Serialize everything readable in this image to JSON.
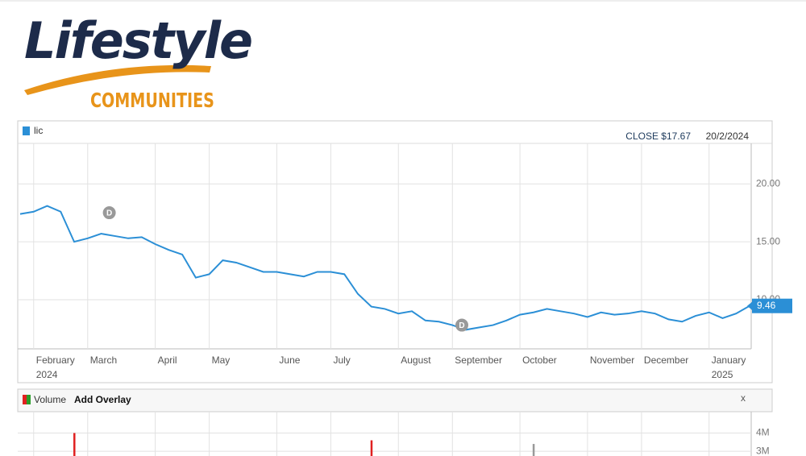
{
  "header": {
    "logo_title": "Lifestyle",
    "logo_subtitle": "COMMUNITIES"
  },
  "chart_data": {
    "type": "line",
    "legend_name": "lic",
    "close_label": "CLOSE $17.67",
    "date_label": "20/2/2024",
    "annotations": [
      "D",
      "D"
    ],
    "categories": [
      null,
      "February 2024",
      null,
      null,
      null,
      "March",
      null,
      null,
      null,
      null,
      "April",
      null,
      null,
      null,
      "May",
      null,
      null,
      null,
      null,
      "June",
      null,
      null,
      null,
      "July",
      null,
      null,
      null,
      null,
      "August",
      null,
      null,
      null,
      "September",
      null,
      null,
      null,
      null,
      "October",
      null,
      null,
      null,
      null,
      "November",
      null,
      null,
      null,
      "December",
      null,
      null,
      null,
      null,
      "January 2025",
      null,
      null,
      null
    ],
    "series": [
      {
        "name": "lic",
        "color": "#2b8fd6",
        "values": [
          17.4,
          17.6,
          18.1,
          17.6,
          15.0,
          15.3,
          15.7,
          15.5,
          15.3,
          15.4,
          14.8,
          14.3,
          13.9,
          11.9,
          12.2,
          13.4,
          13.2,
          12.8,
          12.4,
          12.4,
          12.2,
          12.0,
          12.4,
          12.4,
          12.2,
          10.5,
          9.4,
          9.2,
          8.8,
          9.0,
          8.2,
          8.1,
          7.8,
          7.4,
          7.6,
          7.8,
          8.2,
          8.7,
          8.9,
          9.2,
          9.0,
          8.8,
          8.5,
          8.9,
          8.7,
          8.8,
          9.0,
          8.8,
          8.3,
          8.1,
          8.6,
          8.9,
          8.4,
          8.8,
          9.46
        ]
      }
    ],
    "ylim": [
      5.75,
      23.5
    ],
    "yticks": [
      {
        "value": 10,
        "label": "10.00"
      },
      {
        "value": 15,
        "label": "15.00"
      },
      {
        "value": 20,
        "label": "20.00"
      }
    ],
    "grid": true,
    "volume": {
      "label": "Volume",
      "overlay_button": "Add Overlay",
      "close_button": "x",
      "ylim": [
        2740000,
        5170000
      ],
      "yticks": [
        {
          "value": 3000000,
          "label": "3M"
        },
        {
          "value": 4000000,
          "label": "4M"
        }
      ],
      "colors": [
        "#e02020",
        "#999999"
      ],
      "values": [
        null,
        null,
        null,
        null,
        4000000,
        null,
        null,
        null,
        null,
        null,
        null,
        null,
        null,
        null,
        null,
        null,
        null,
        null,
        null,
        null,
        null,
        null,
        null,
        null,
        null,
        null,
        3600000,
        null,
        null,
        null,
        null,
        null,
        null,
        null,
        null,
        null,
        null,
        null,
        3400000,
        null,
        null,
        null,
        null,
        null,
        null,
        null,
        null,
        null,
        null,
        null,
        null,
        null,
        null,
        null,
        null
      ]
    }
  }
}
